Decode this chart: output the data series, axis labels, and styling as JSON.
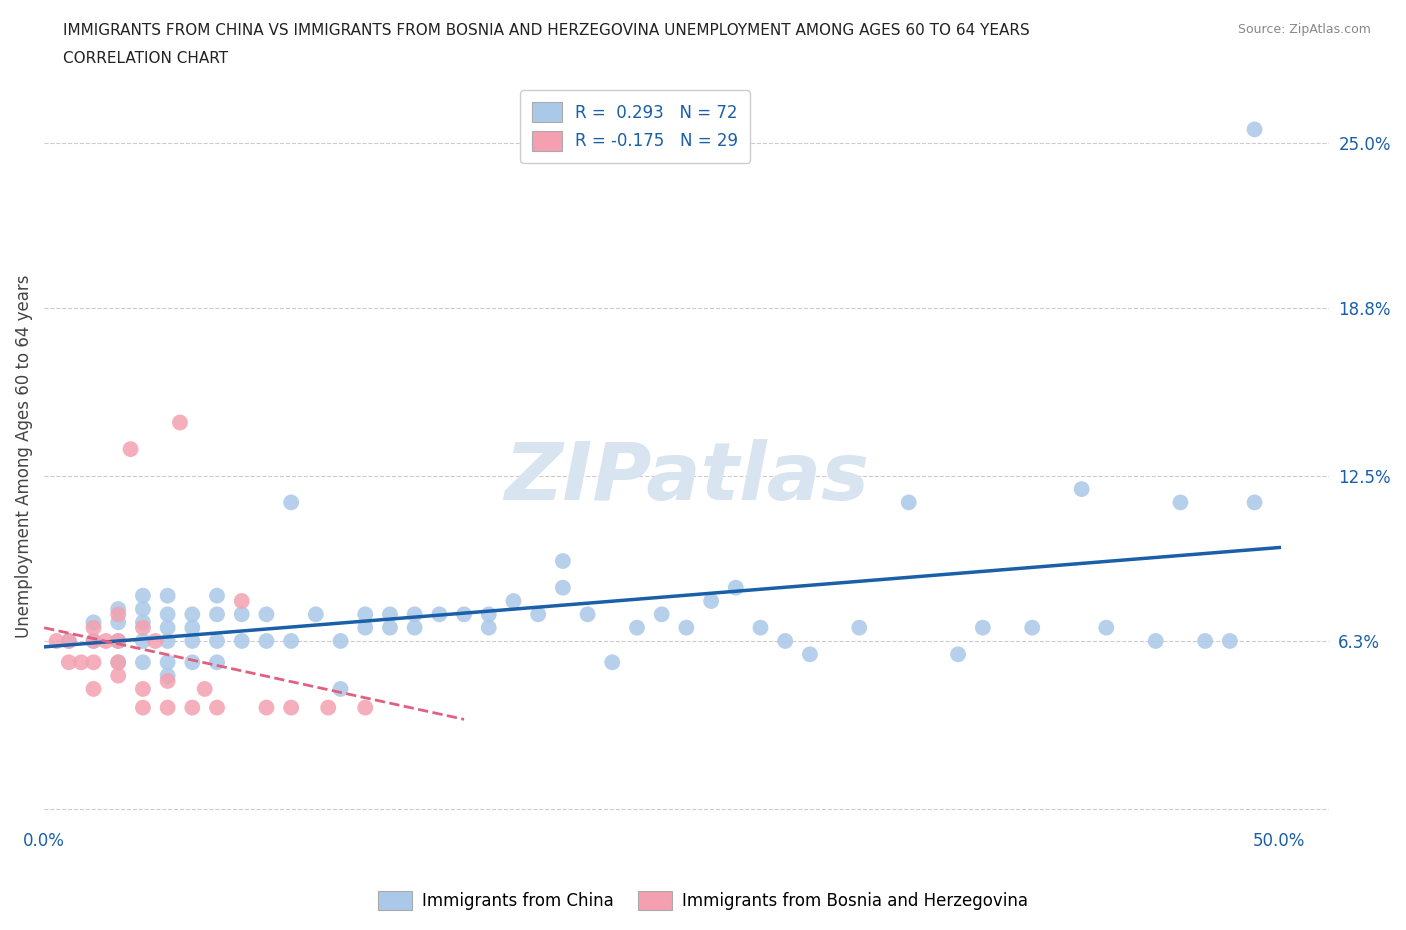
{
  "title_line1": "IMMIGRANTS FROM CHINA VS IMMIGRANTS FROM BOSNIA AND HERZEGOVINA UNEMPLOYMENT AMONG AGES 60 TO 64 YEARS",
  "title_line2": "CORRELATION CHART",
  "source": "Source: ZipAtlas.com",
  "ylabel": "Unemployment Among Ages 60 to 64 years",
  "xlim": [
    0.0,
    0.52
  ],
  "ylim": [
    -0.005,
    0.27
  ],
  "xticks": [
    0.0,
    0.1,
    0.2,
    0.3,
    0.4,
    0.5
  ],
  "xticklabels": [
    "0.0%",
    "",
    "",
    "",
    "",
    "50.0%"
  ],
  "ytick_positions": [
    0.0,
    0.063,
    0.125,
    0.188,
    0.25
  ],
  "ytick_labels": [
    "",
    "6.3%",
    "12.5%",
    "18.8%",
    "25.0%"
  ],
  "china_R": 0.293,
  "china_N": 72,
  "bosnia_R": -0.175,
  "bosnia_N": 29,
  "china_color": "#aac8e8",
  "bosnia_color": "#f4a0b0",
  "china_line_color": "#1a5fa8",
  "bosnia_line_color": "#e06080",
  "watermark": "ZIPatlas",
  "watermark_color": "#d8e4f0",
  "legend_label_china": "Immigrants from China",
  "legend_label_bosnia": "Immigrants from Bosnia and Herzegovina",
  "china_x": [
    0.01,
    0.02,
    0.02,
    0.03,
    0.03,
    0.03,
    0.03,
    0.04,
    0.04,
    0.04,
    0.04,
    0.04,
    0.05,
    0.05,
    0.05,
    0.05,
    0.05,
    0.05,
    0.06,
    0.06,
    0.06,
    0.06,
    0.07,
    0.07,
    0.07,
    0.07,
    0.08,
    0.08,
    0.09,
    0.09,
    0.1,
    0.1,
    0.11,
    0.12,
    0.12,
    0.13,
    0.13,
    0.14,
    0.14,
    0.15,
    0.15,
    0.16,
    0.17,
    0.18,
    0.18,
    0.19,
    0.2,
    0.21,
    0.21,
    0.22,
    0.23,
    0.24,
    0.25,
    0.26,
    0.27,
    0.28,
    0.29,
    0.3,
    0.31,
    0.33,
    0.35,
    0.37,
    0.38,
    0.4,
    0.42,
    0.43,
    0.45,
    0.46,
    0.47,
    0.48,
    0.49,
    0.49
  ],
  "china_y": [
    0.063,
    0.063,
    0.07,
    0.055,
    0.063,
    0.07,
    0.075,
    0.055,
    0.063,
    0.07,
    0.075,
    0.08,
    0.05,
    0.055,
    0.063,
    0.068,
    0.073,
    0.08,
    0.055,
    0.063,
    0.068,
    0.073,
    0.055,
    0.063,
    0.073,
    0.08,
    0.063,
    0.073,
    0.063,
    0.073,
    0.063,
    0.115,
    0.073,
    0.045,
    0.063,
    0.068,
    0.073,
    0.068,
    0.073,
    0.068,
    0.073,
    0.073,
    0.073,
    0.068,
    0.073,
    0.078,
    0.073,
    0.083,
    0.093,
    0.073,
    0.055,
    0.068,
    0.073,
    0.068,
    0.078,
    0.083,
    0.068,
    0.063,
    0.058,
    0.068,
    0.115,
    0.058,
    0.068,
    0.068,
    0.12,
    0.068,
    0.063,
    0.115,
    0.063,
    0.063,
    0.115,
    0.255
  ],
  "bosnia_x": [
    0.005,
    0.01,
    0.01,
    0.015,
    0.02,
    0.02,
    0.02,
    0.02,
    0.025,
    0.03,
    0.03,
    0.03,
    0.03,
    0.035,
    0.04,
    0.04,
    0.04,
    0.045,
    0.05,
    0.05,
    0.055,
    0.06,
    0.065,
    0.07,
    0.08,
    0.09,
    0.1,
    0.115,
    0.13
  ],
  "bosnia_y": [
    0.063,
    0.055,
    0.063,
    0.055,
    0.045,
    0.055,
    0.063,
    0.068,
    0.063,
    0.05,
    0.055,
    0.063,
    0.073,
    0.135,
    0.038,
    0.045,
    0.068,
    0.063,
    0.038,
    0.048,
    0.145,
    0.038,
    0.045,
    0.038,
    0.078,
    0.038,
    0.038,
    0.038,
    0.038
  ],
  "bosnia_trendline_x": [
    0.0,
    0.17
  ],
  "china_trendline_x": [
    0.0,
    0.5
  ]
}
